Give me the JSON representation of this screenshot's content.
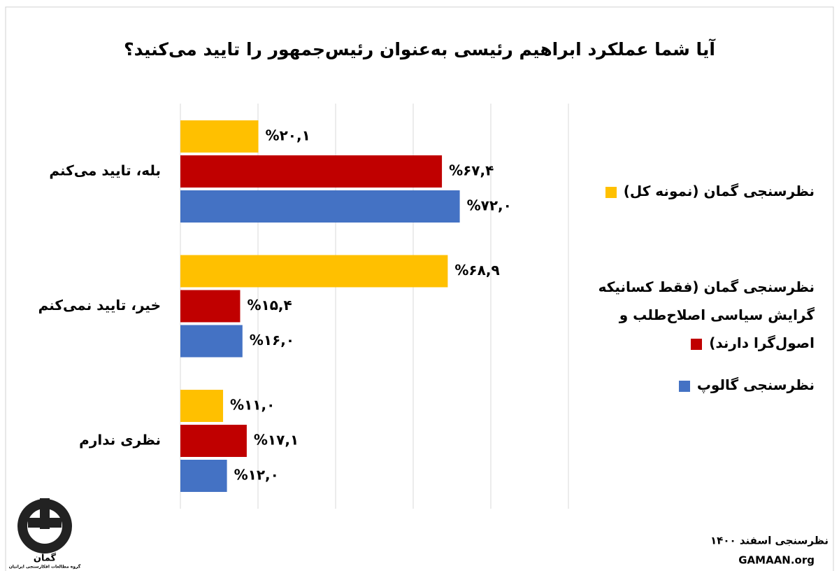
{
  "chart_data": {
    "type": "barh",
    "title": "آیا شما عملکرد ابراهیم رئیسی به‌عنوان رئیس‌جمهور را تایید می‌کنید؟",
    "categories": [
      "بله، تایید می‌کنم",
      "خیر، تایید نمی‌کنم",
      "نظری ندارم"
    ],
    "series": [
      {
        "name": "نظرسنجی گمان (نمونه کل)",
        "color": "#ffc000",
        "values": [
          20.1,
          68.9,
          11.0
        ],
        "value_labels": [
          "%۲۰,۱",
          "%۶۸,۹",
          "%۱۱,۰"
        ]
      },
      {
        "name": "نظرسنجی گمان (فقط کسانیکه گرایش سیاسی اصلاح‌طلب و اصول‌گرا دارند)",
        "color": "#c00000",
        "values": [
          67.4,
          15.4,
          17.1
        ],
        "value_labels": [
          "%۶۷,۴",
          "%۱۵,۴",
          "%۱۷,۱"
        ]
      },
      {
        "name": "نظرسنجی گالوپ",
        "color": "#4472c4",
        "values": [
          72.0,
          16.0,
          12.0
        ],
        "value_labels": [
          "%۷۲,۰",
          "%۱۶,۰",
          "%۱۲,۰"
        ]
      }
    ],
    "xlim": [
      0,
      100
    ],
    "xticks": [
      0,
      20,
      40,
      60,
      80,
      100
    ],
    "grid": true,
    "legend": "right"
  },
  "footer": {
    "date": "نظرسنجی اسفند ۱۴۰۰",
    "site": "GAMAAN.org"
  },
  "logo": {
    "name": "گمان",
    "subtitle": "گروه مطالعات افکارسنجی ایرانیان"
  }
}
